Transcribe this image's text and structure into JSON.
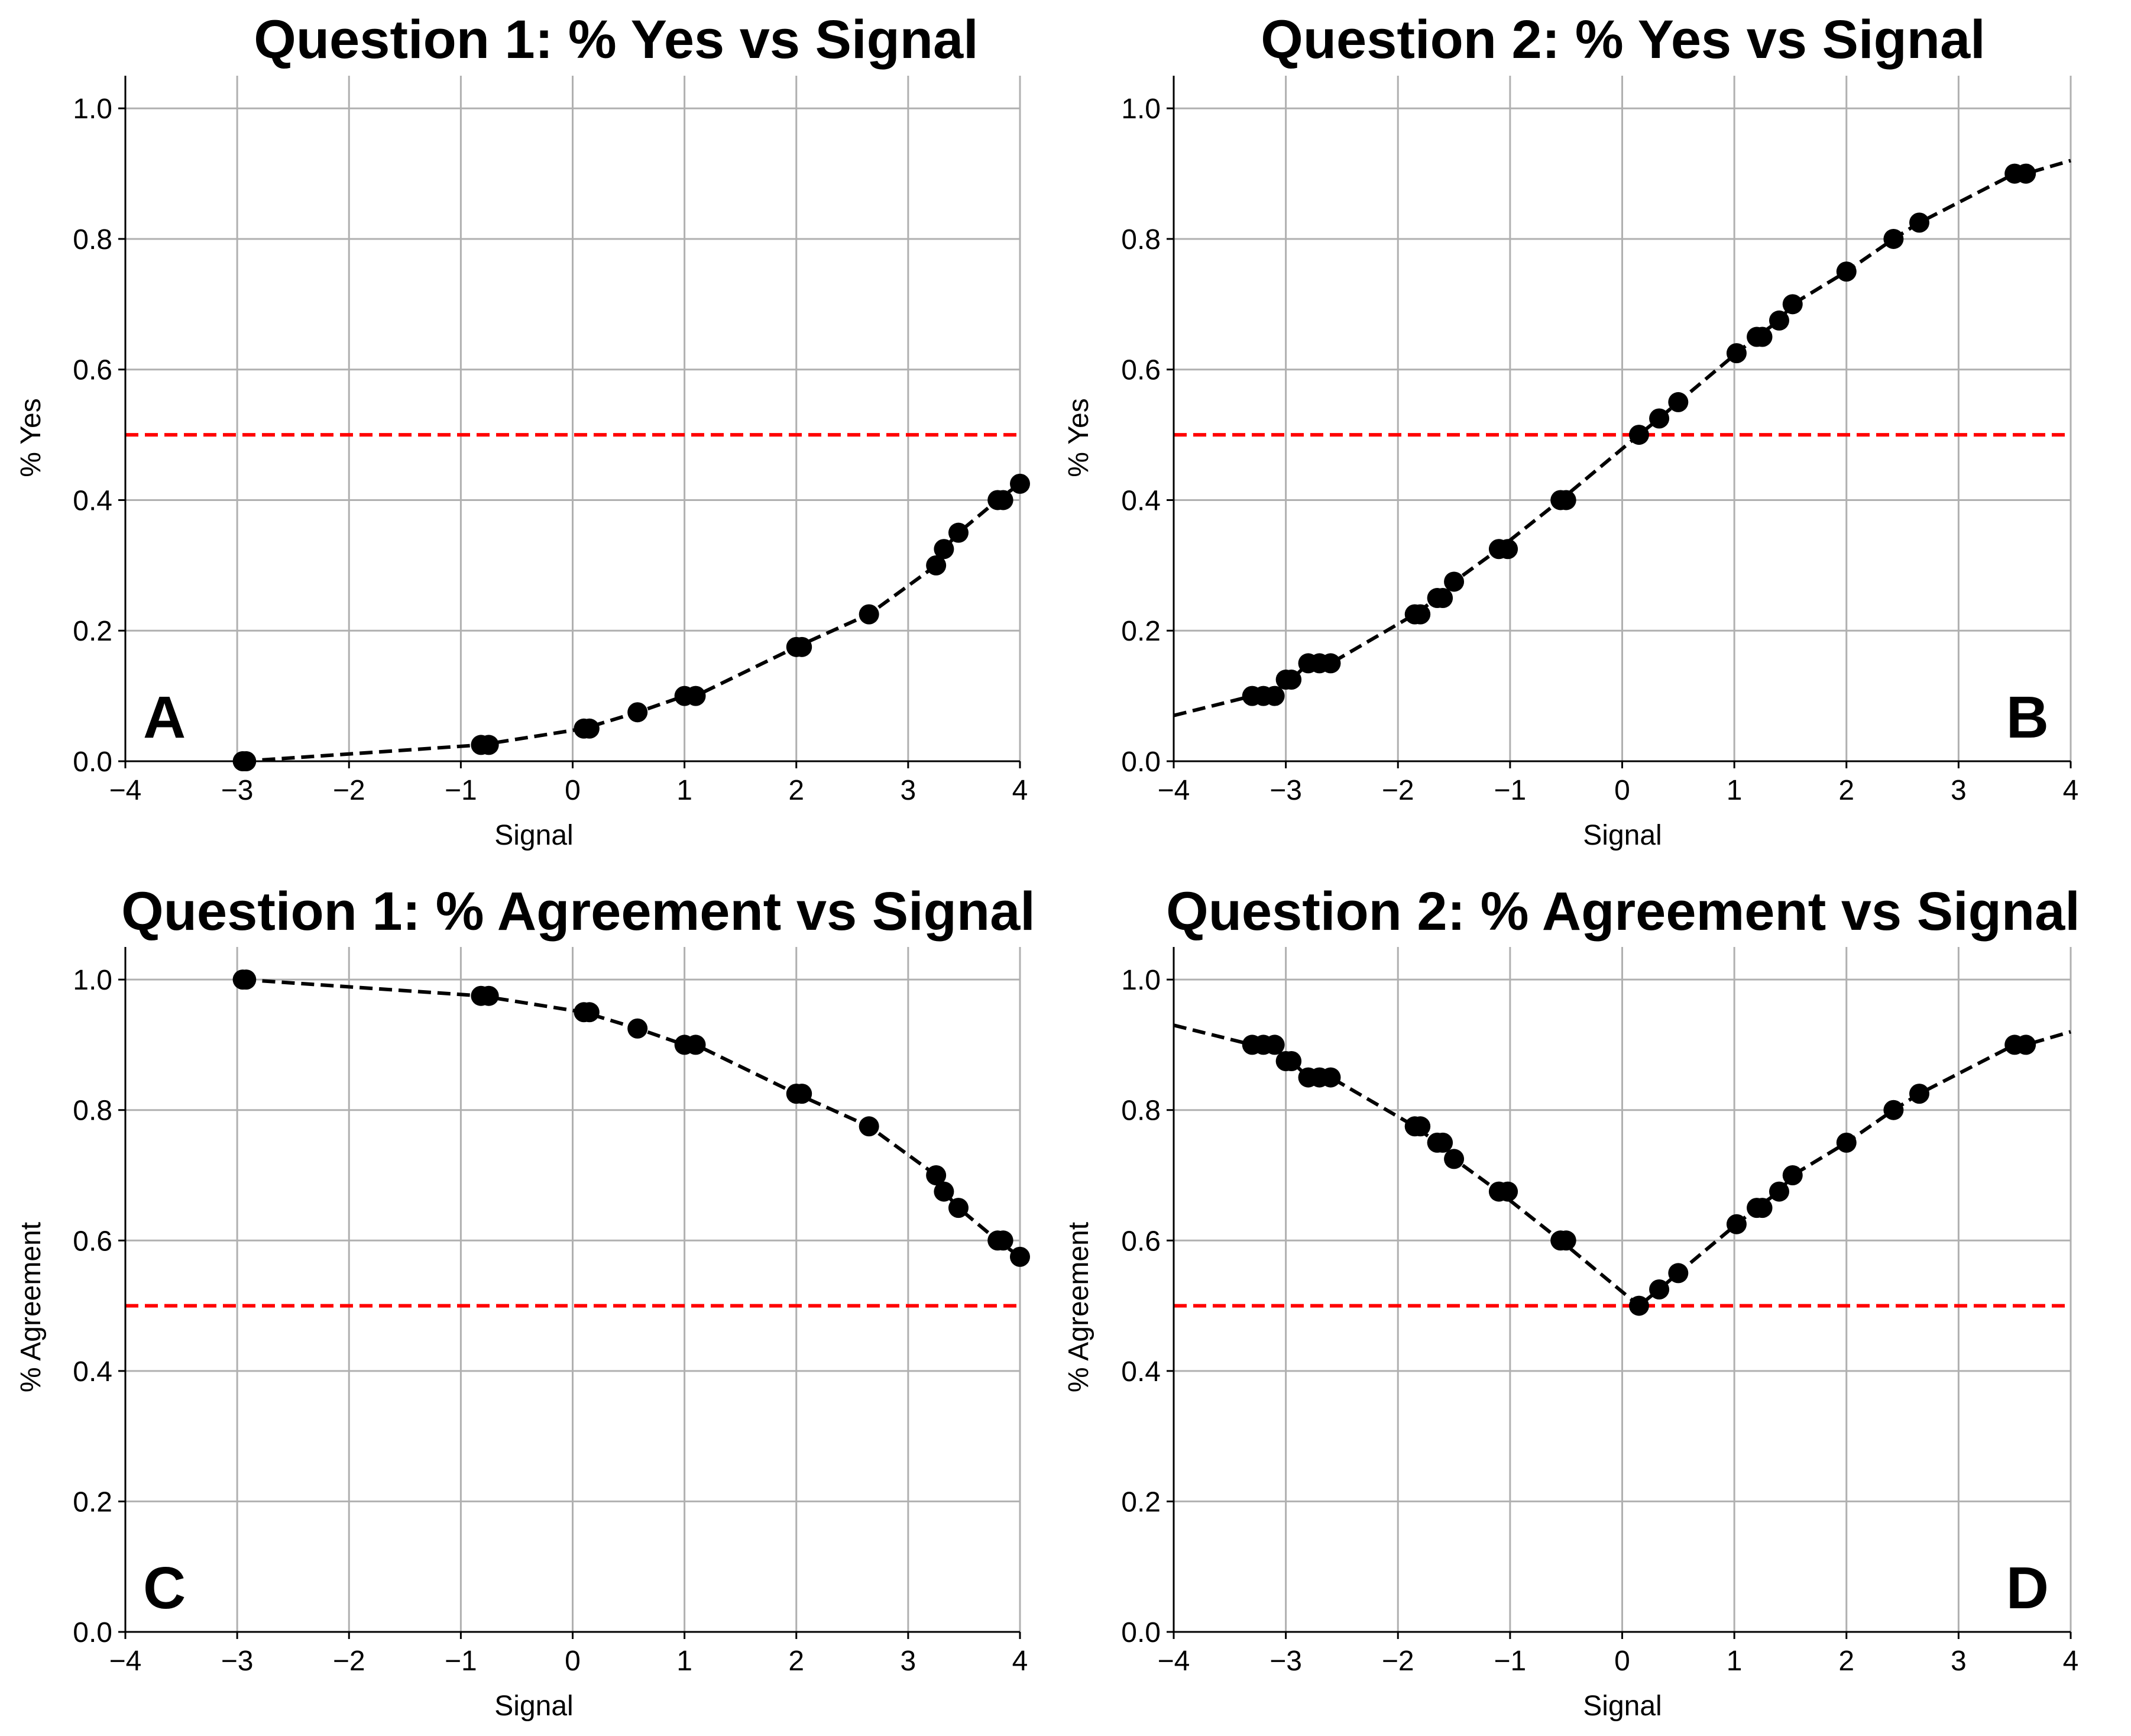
{
  "chart_data": [
    {
      "id": "A",
      "type": "line",
      "title": "Question 1: % Yes vs Signal",
      "xlabel": "Signal",
      "ylabel": "% Yes",
      "panel_letter": "A",
      "letter_position": "bottom-left",
      "xlim": [
        -4,
        4
      ],
      "ylim": [
        0,
        1.05
      ],
      "xticks": [
        -4,
        -3,
        -2,
        -1,
        0,
        1,
        2,
        3,
        4
      ],
      "yticks": [
        0.0,
        0.2,
        0.4,
        0.6,
        0.8,
        1.0
      ],
      "grid": true,
      "reference_line": {
        "y": 0.5,
        "color": "#ff0000",
        "style": "dashed"
      },
      "series_color": "#000000",
      "series": [
        {
          "x": [
            -2.95,
            -2.92,
            -0.82,
            -0.75,
            0.1,
            0.15,
            0.58,
            1.0,
            1.1,
            2.0,
            2.05,
            2.65,
            3.25,
            3.32,
            3.45,
            3.8,
            3.85,
            4.0
          ],
          "y": [
            0.0,
            0.0,
            0.025,
            0.025,
            0.05,
            0.05,
            0.075,
            0.1,
            0.1,
            0.175,
            0.175,
            0.225,
            0.3,
            0.325,
            0.35,
            0.4,
            0.4,
            0.425
          ]
        }
      ],
      "curve": {
        "x": [
          -2.95,
          -0.82,
          0.1,
          0.58,
          1.0,
          1.1,
          2.0,
          2.65,
          3.25,
          3.32,
          3.45,
          3.8,
          4.0
        ],
        "y": [
          0.0,
          0.025,
          0.05,
          0.075,
          0.1,
          0.1,
          0.175,
          0.225,
          0.3,
          0.325,
          0.35,
          0.4,
          0.425
        ]
      }
    },
    {
      "id": "B",
      "type": "line",
      "title": "Question 2: % Yes vs Signal",
      "xlabel": "Signal",
      "ylabel": "% Yes",
      "panel_letter": "B",
      "letter_position": "bottom-right",
      "xlim": [
        -4,
        4
      ],
      "ylim": [
        0,
        1.05
      ],
      "xticks": [
        -4,
        -3,
        -2,
        -1,
        0,
        1,
        2,
        3,
        4
      ],
      "yticks": [
        0.0,
        0.2,
        0.4,
        0.6,
        0.8,
        1.0
      ],
      "grid": true,
      "reference_line": {
        "y": 0.5,
        "color": "#ff0000",
        "style": "dashed"
      },
      "series_color": "#000000",
      "series": [
        {
          "x": [
            -3.3,
            -3.2,
            -3.1,
            -3.0,
            -2.95,
            -2.8,
            -2.7,
            -2.6,
            -1.85,
            -1.8,
            -1.65,
            -1.6,
            -1.5,
            -1.1,
            -1.02,
            -0.55,
            -0.5,
            0.15,
            0.33,
            0.5,
            1.02,
            1.2,
            1.25,
            1.4,
            1.52,
            2.0,
            2.42,
            2.65,
            3.5,
            3.6
          ],
          "y": [
            0.1,
            0.1,
            0.1,
            0.125,
            0.125,
            0.15,
            0.15,
            0.15,
            0.225,
            0.225,
            0.25,
            0.25,
            0.275,
            0.325,
            0.325,
            0.4,
            0.4,
            0.5,
            0.525,
            0.55,
            0.625,
            0.65,
            0.65,
            0.675,
            0.7,
            0.75,
            0.8,
            0.825,
            0.9,
            0.9
          ]
        }
      ],
      "curve": {
        "x": [
          -4.0,
          -3.3,
          -3.1,
          -2.95,
          -2.8,
          -2.6,
          -1.85,
          -1.65,
          -1.5,
          -1.1,
          -0.55,
          0.15,
          0.33,
          0.5,
          1.02,
          1.2,
          1.4,
          1.52,
          2.0,
          2.42,
          2.65,
          3.5,
          3.6,
          4.0
        ],
        "y": [
          0.07,
          0.1,
          0.1,
          0.125,
          0.15,
          0.15,
          0.225,
          0.25,
          0.275,
          0.325,
          0.4,
          0.5,
          0.525,
          0.55,
          0.625,
          0.65,
          0.675,
          0.7,
          0.75,
          0.8,
          0.825,
          0.9,
          0.9,
          0.92
        ]
      }
    },
    {
      "id": "C",
      "type": "line",
      "title": "Question 1: % Agreement vs Signal",
      "xlabel": "Signal",
      "ylabel": "% Agreement",
      "panel_letter": "C",
      "letter_position": "bottom-left",
      "xlim": [
        -4,
        4
      ],
      "ylim": [
        0,
        1.05
      ],
      "xticks": [
        -4,
        -3,
        -2,
        -1,
        0,
        1,
        2,
        3,
        4
      ],
      "yticks": [
        0.0,
        0.2,
        0.4,
        0.6,
        0.8,
        1.0
      ],
      "grid": true,
      "reference_line": {
        "y": 0.5,
        "color": "#ff0000",
        "style": "dashed"
      },
      "series_color": "#000000",
      "series": [
        {
          "x": [
            -2.95,
            -2.92,
            -0.82,
            -0.75,
            0.1,
            0.15,
            0.58,
            1.0,
            1.1,
            2.0,
            2.05,
            2.65,
            3.25,
            3.32,
            3.45,
            3.8,
            3.85,
            4.0
          ],
          "y": [
            1.0,
            1.0,
            0.975,
            0.975,
            0.95,
            0.95,
            0.925,
            0.9,
            0.9,
            0.825,
            0.825,
            0.775,
            0.7,
            0.675,
            0.65,
            0.6,
            0.6,
            0.575
          ]
        }
      ],
      "curve": {
        "x": [
          -2.95,
          -0.82,
          0.1,
          0.58,
          1.0,
          1.1,
          2.0,
          2.65,
          3.25,
          3.32,
          3.45,
          3.8,
          4.0
        ],
        "y": [
          1.0,
          0.975,
          0.95,
          0.925,
          0.9,
          0.9,
          0.825,
          0.775,
          0.7,
          0.675,
          0.65,
          0.6,
          0.575
        ]
      }
    },
    {
      "id": "D",
      "type": "line",
      "title": "Question 2: % Agreement vs Signal",
      "xlabel": "Signal",
      "ylabel": "% Agreement",
      "panel_letter": "D",
      "letter_position": "bottom-right",
      "xlim": [
        -4,
        4
      ],
      "ylim": [
        0,
        1.05
      ],
      "xticks": [
        -4,
        -3,
        -2,
        -1,
        0,
        1,
        2,
        3,
        4
      ],
      "yticks": [
        0.0,
        0.2,
        0.4,
        0.6,
        0.8,
        1.0
      ],
      "grid": true,
      "reference_line": {
        "y": 0.5,
        "color": "#ff0000",
        "style": "dashed"
      },
      "series_color": "#000000",
      "series": [
        {
          "x": [
            -3.3,
            -3.2,
            -3.1,
            -3.0,
            -2.95,
            -2.8,
            -2.7,
            -2.6,
            -1.85,
            -1.8,
            -1.65,
            -1.6,
            -1.5,
            -1.1,
            -1.02,
            -0.55,
            -0.5,
            0.15,
            0.33,
            0.5,
            1.02,
            1.2,
            1.25,
            1.4,
            1.52,
            2.0,
            2.42,
            2.65,
            3.5,
            3.6
          ],
          "y": [
            0.9,
            0.9,
            0.9,
            0.875,
            0.875,
            0.85,
            0.85,
            0.85,
            0.775,
            0.775,
            0.75,
            0.75,
            0.725,
            0.675,
            0.675,
            0.6,
            0.6,
            0.5,
            0.525,
            0.55,
            0.625,
            0.65,
            0.65,
            0.675,
            0.7,
            0.75,
            0.8,
            0.825,
            0.9,
            0.9
          ]
        }
      ],
      "curve": {
        "x": [
          -4.0,
          -3.3,
          -3.1,
          -2.95,
          -2.8,
          -2.6,
          -1.85,
          -1.65,
          -1.5,
          -1.1,
          -0.55,
          0.15,
          0.33,
          0.5,
          1.02,
          1.2,
          1.4,
          1.52,
          2.0,
          2.42,
          2.65,
          3.5,
          3.6,
          4.0
        ],
        "y": [
          0.93,
          0.9,
          0.9,
          0.875,
          0.85,
          0.85,
          0.775,
          0.75,
          0.725,
          0.675,
          0.6,
          0.5,
          0.525,
          0.55,
          0.625,
          0.65,
          0.675,
          0.7,
          0.75,
          0.8,
          0.825,
          0.9,
          0.9,
          0.92
        ]
      }
    }
  ]
}
